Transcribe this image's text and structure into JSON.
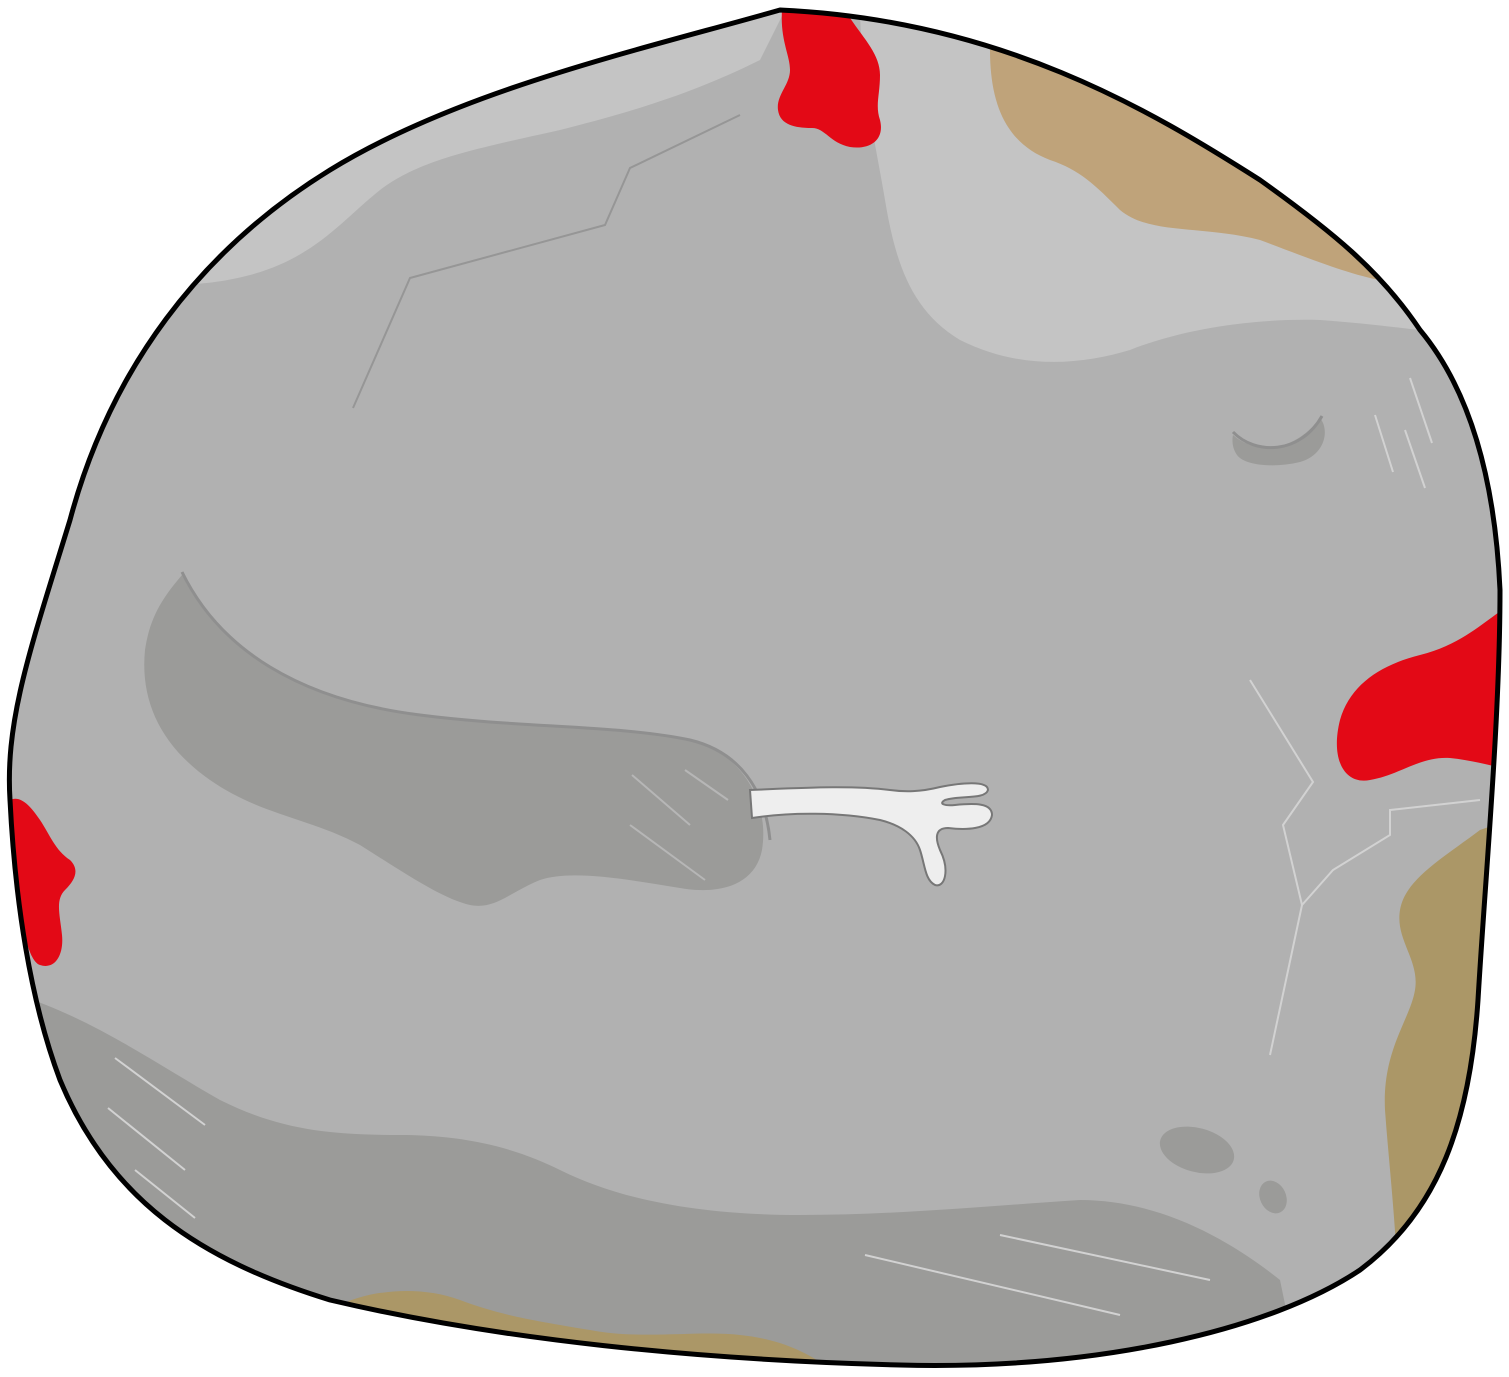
{
  "colors": {
    "background": "#ffffff",
    "outline": "#000000",
    "rock_base": "#b1b1b1",
    "rock_highlight": "#c4c4c4",
    "rock_shadow": "#9b9b99",
    "rock_dark_spot": "#8e8e8e",
    "moss_tan": "#bfa37a",
    "moss_olive": "#ab9767",
    "lava_red": "#e30916",
    "crack_line": "#8f8f8f",
    "crack_light": "#d2d2d2",
    "twig": "#eeeeee"
  },
  "scene": {
    "subject": "cartoon-rock-character",
    "features": [
      "closed-eye",
      "arm-with-twig-hand",
      "red-spots",
      "moss-patches",
      "cracks"
    ]
  }
}
